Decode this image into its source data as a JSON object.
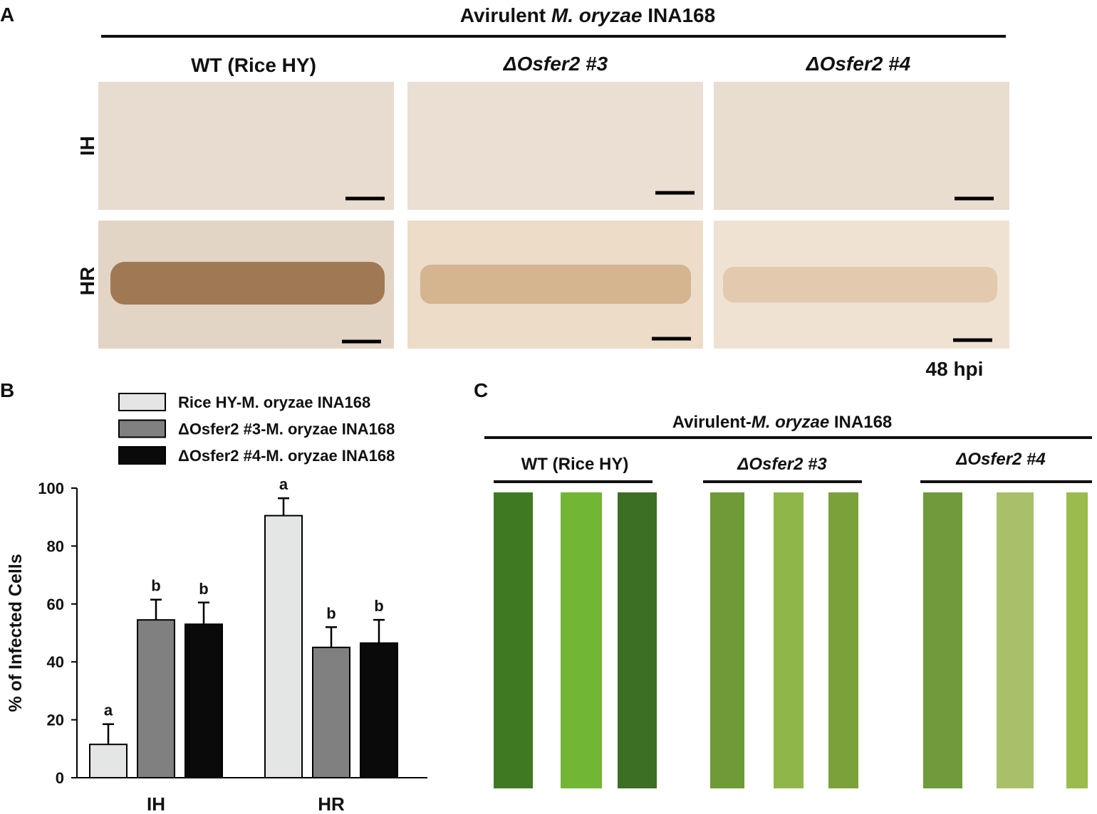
{
  "panel_a": {
    "label": "A",
    "title_parts": [
      "Avirulent ",
      "M. oryzae",
      " INA168"
    ],
    "columns": [
      "WT (Rice HY)",
      "ΔOsfer2 #3",
      "ΔOsfer2 #4"
    ],
    "rows": [
      "IH",
      "HR"
    ],
    "time": "48 hpi"
  },
  "panel_b_label": "B",
  "chart_data": {
    "type": "bar",
    "y_label": "% of Infected Cells",
    "categories": [
      "IH",
      "HR"
    ],
    "series": [
      {
        "name": "Rice HY-M. oryzae INA168",
        "color": "#e4e6e6",
        "values": [
          11.5,
          90.5
        ],
        "errors": [
          7,
          6
        ],
        "letters": [
          "a",
          "a"
        ]
      },
      {
        "name": "ΔOsfer2 #3-M. oryzae INA168",
        "color": "#808080",
        "values": [
          54.5,
          45
        ],
        "errors": [
          7,
          7
        ],
        "letters": [
          "b",
          "b"
        ]
      },
      {
        "name": "ΔOsfer2 #4-M. oryzae INA168",
        "color": "#0a0a0a",
        "values": [
          53,
          46.5
        ],
        "errors": [
          7.5,
          8
        ],
        "letters": [
          "b",
          "b"
        ]
      }
    ],
    "ylim": [
      0,
      100
    ],
    "yticks": [
      0,
      20,
      40,
      60,
      80,
      100
    ]
  },
  "panel_c": {
    "label": "C",
    "title_parts": [
      "Avirulent-",
      "M. oryzae",
      " INA168"
    ],
    "groups": [
      "WT (Rice HY)",
      "ΔOsfer2 #3",
      "ΔOsfer2 #4"
    ]
  }
}
